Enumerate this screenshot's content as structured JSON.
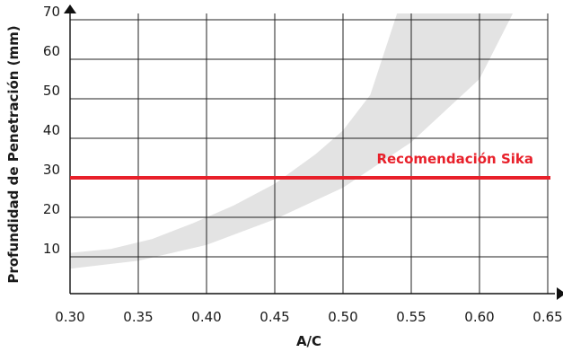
{
  "chart_data": {
    "type": "area",
    "title": "",
    "xlabel": "A/C",
    "ylabel": "Profundidad de Penetración (mm)",
    "xlim": [
      0.3,
      0.65
    ],
    "ylim": [
      0,
      72
    ],
    "x_ticks": [
      "0.30",
      "0.35",
      "0.40",
      "0.45",
      "0.50",
      "0.55",
      "0.60",
      "0.65"
    ],
    "x_tick_values": [
      0.3,
      0.35,
      0.4,
      0.45,
      0.5,
      0.55,
      0.6,
      0.65
    ],
    "y_ticks": [
      "10",
      "20",
      "30",
      "40",
      "50",
      "60",
      "70"
    ],
    "y_tick_values": [
      10,
      20,
      30,
      40,
      50,
      60,
      70
    ],
    "grid": true,
    "band": {
      "color": "#e3e3e3",
      "upper": {
        "x": [
          0.3,
          0.33,
          0.36,
          0.39,
          0.42,
          0.45,
          0.48,
          0.5,
          0.52,
          0.54
        ],
        "y": [
          11,
          12,
          14.5,
          18.5,
          23,
          28.5,
          36,
          42,
          51,
          72
        ]
      },
      "lower": {
        "x": [
          0.3,
          0.35,
          0.4,
          0.45,
          0.5,
          0.55,
          0.6,
          0.625
        ],
        "y": [
          7,
          9,
          13,
          19.5,
          27.5,
          39,
          55,
          72
        ]
      }
    },
    "reference_line": {
      "y": 30,
      "label": "Recomendación Sika",
      "color": "#e8202a"
    }
  }
}
